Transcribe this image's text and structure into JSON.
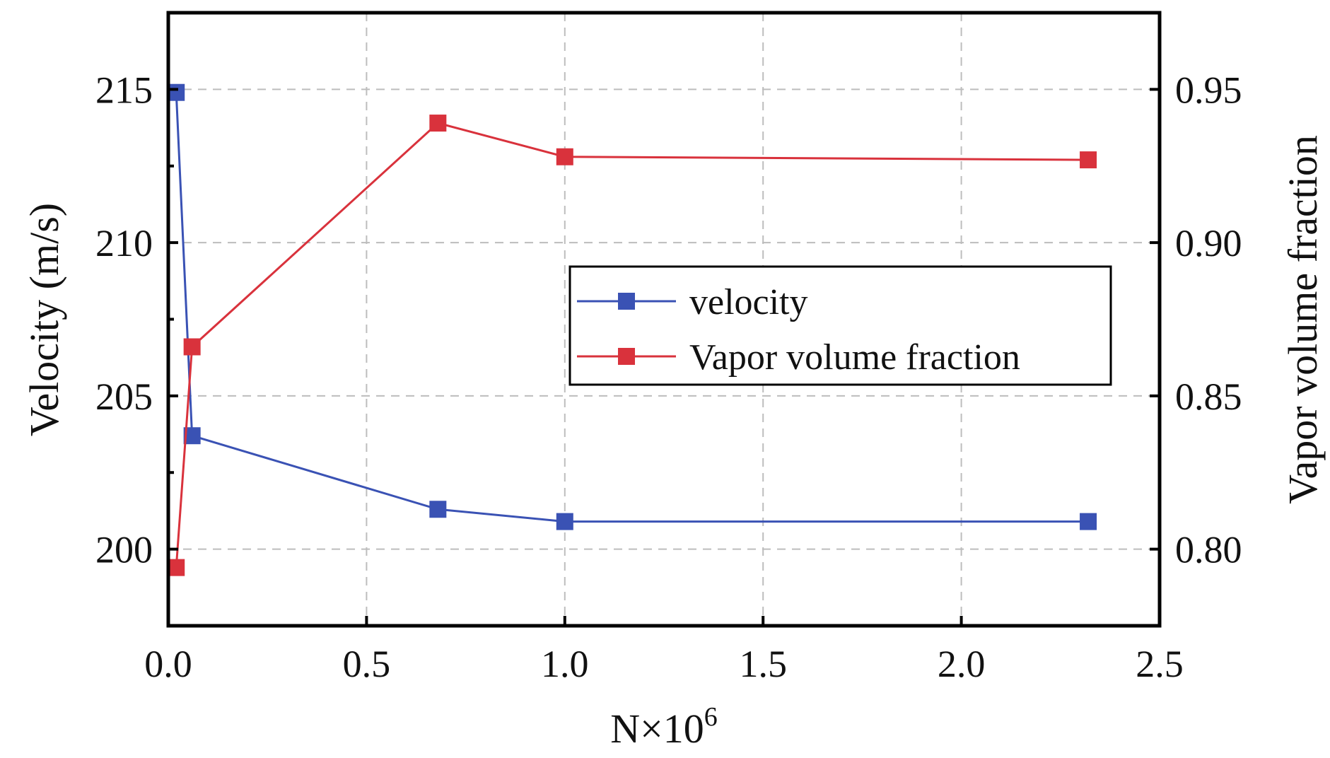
{
  "chart_data": {
    "type": "line",
    "title": "",
    "xlabel": "N×10",
    "xlabel_superscript": "6",
    "ylabel_left": "Velocity (m/s)",
    "ylabel_right": "Vapor volume fraction",
    "xlim": [
      0.0,
      2.5
    ],
    "ylim_left": [
      197.5,
      217.5
    ],
    "ylim_right": [
      0.775,
      0.975
    ],
    "x_ticks": [
      "0.0",
      "0.5",
      "1.0",
      "1.5",
      "2.0",
      "2.5"
    ],
    "y_left_ticks": [
      "200",
      "205",
      "210",
      "215"
    ],
    "y_right_ticks": [
      "0.80",
      "0.85",
      "0.90",
      "0.95"
    ],
    "grid": true,
    "legend_position": "center-right",
    "series": [
      {
        "name": "velocity",
        "axis": "left",
        "color": "#3a52b4",
        "marker": "square",
        "x": [
          0.02,
          0.06,
          0.68,
          1.0,
          2.32
        ],
        "values": [
          214.9,
          203.7,
          201.3,
          200.9,
          200.9
        ]
      },
      {
        "name": "Vapor volume fraction",
        "axis": "right",
        "color": "#d9323c",
        "marker": "square",
        "x": [
          0.02,
          0.06,
          0.68,
          1.0,
          2.32
        ],
        "values": [
          0.794,
          0.866,
          0.939,
          0.928,
          0.927
        ]
      }
    ]
  }
}
